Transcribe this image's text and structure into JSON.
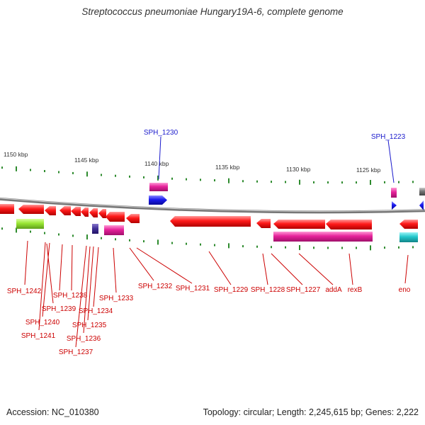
{
  "title": "Streptococcus pneumoniae Hungary19A-6, complete genome",
  "footer": {
    "accession": "Accession: NC_010380",
    "summary": "Topology: circular; Length: 2,245,615 bp; Genes: 2,222"
  },
  "colors": {
    "backbone": "#8a8a8a",
    "gene_red": "#ff1a1a",
    "gene_magenta": "#e6229a",
    "gene_blue": "#1a1aee",
    "gene_green": "#99e633",
    "gene_purple": "#443399",
    "gene_cyan": "#22c7cc",
    "gene_gray": "#777777",
    "tick": "#2e8b2e",
    "label_bottom": "#cc0000",
    "label_top": "#1a1acc"
  },
  "scale_labels": [
    "1150 kbp",
    "1145 kbp",
    "1140 kbp",
    "1135 kbp",
    "1130 kbp",
    "1125 kbp"
  ],
  "genes_bottom": [
    "SPH_1242",
    "SPH_1241",
    "SPH_1240",
    "SPH_1239",
    "SPH_1238",
    "SPH_1237",
    "SPH_1236",
    "SPH_1235",
    "SPH_1234",
    "SPH_1233",
    "SPH_1232",
    "SPH_1231",
    "SPH_1229",
    "SPH_1228",
    "SPH_1227",
    "addA",
    "rexB",
    "eno"
  ],
  "genes_top": [
    "SPH_1230",
    "SPH_1223"
  ]
}
